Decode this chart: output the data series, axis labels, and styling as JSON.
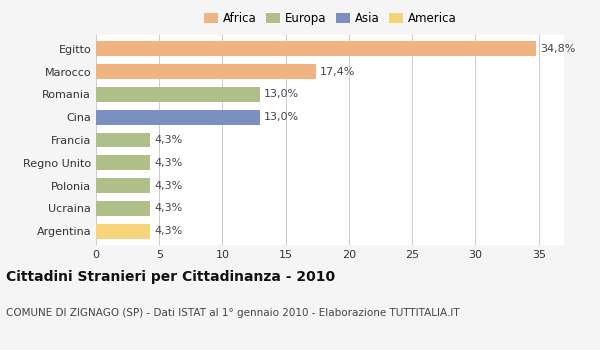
{
  "categories": [
    "Egitto",
    "Marocco",
    "Romania",
    "Cina",
    "Francia",
    "Regno Unito",
    "Polonia",
    "Ucraina",
    "Argentina"
  ],
  "values": [
    34.8,
    17.4,
    13.0,
    13.0,
    4.3,
    4.3,
    4.3,
    4.3,
    4.3
  ],
  "labels": [
    "34,8%",
    "17,4%",
    "13,0%",
    "13,0%",
    "4,3%",
    "4,3%",
    "4,3%",
    "4,3%",
    "4,3%"
  ],
  "colors": [
    "#F0B482",
    "#F0B482",
    "#AEBF8A",
    "#7B8FC0",
    "#AEBF8A",
    "#AEBF8A",
    "#AEBF8A",
    "#AEBF8A",
    "#F5D47A"
  ],
  "legend_labels": [
    "Africa",
    "Europa",
    "Asia",
    "America"
  ],
  "legend_colors": [
    "#F0B482",
    "#AEBF8A",
    "#7B8FC0",
    "#F5D47A"
  ],
  "title": "Cittadini Stranieri per Cittadinanza - 2010",
  "subtitle": "COMUNE DI ZIGNAGO (SP) - Dati ISTAT al 1° gennaio 2010 - Elaborazione TUTTITALIA.IT",
  "xlim": [
    0,
    37
  ],
  "xticks": [
    0,
    5,
    10,
    15,
    20,
    25,
    30,
    35
  ],
  "background_color": "#f5f5f5",
  "plot_bg_color": "#ffffff",
  "grid_color": "#cccccc",
  "title_fontsize": 10,
  "subtitle_fontsize": 7.5,
  "label_fontsize": 8,
  "tick_fontsize": 8,
  "legend_fontsize": 8.5
}
